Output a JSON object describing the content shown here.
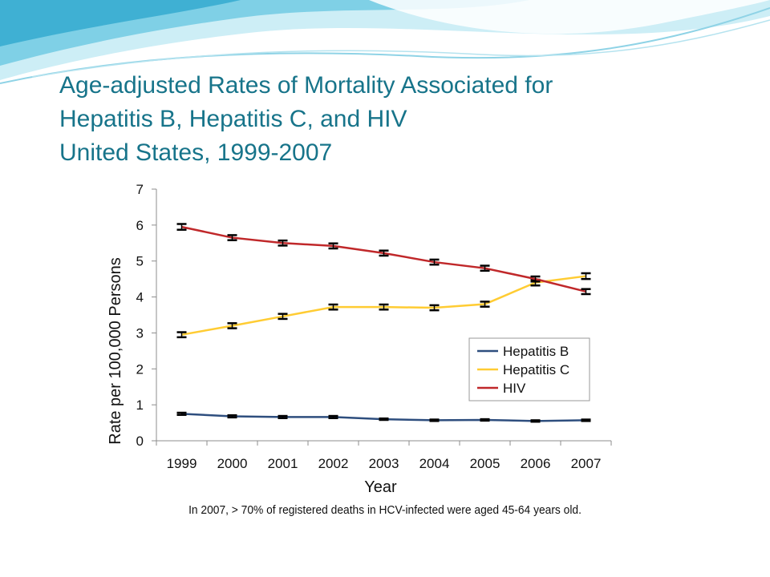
{
  "slide": {
    "title_lines": [
      "Age-adjusted Rates of Mortality Associated for",
      "Hepatitis B, Hepatitis C, and HIV",
      "United States, 1999-2007"
    ],
    "footnote": "In 2007, > 70% of registered deaths in HCV-infected were aged 45-64 years old.",
    "colors": {
      "title": "#17748a",
      "wave_dark": "#4fb8d6",
      "wave_light": "#bfe7f1"
    }
  },
  "chart_data": {
    "type": "line",
    "xlabel": "Year",
    "ylabel": "Rate per 100,000 Persons",
    "x": [
      "1999",
      "2000",
      "2001",
      "2002",
      "2003",
      "2004",
      "2005",
      "2006",
      "2007"
    ],
    "ylim": [
      0,
      7
    ],
    "yticks": [
      "0",
      "1",
      "2",
      "3",
      "4",
      "5",
      "6",
      "7"
    ],
    "grid": false,
    "legend_position": "lower-right",
    "error_bars": true,
    "series": [
      {
        "name": "Hepatitis B",
        "color": "#2e4e7e",
        "values": [
          0.75,
          0.68,
          0.66,
          0.66,
          0.6,
          0.57,
          0.58,
          0.55,
          0.57
        ],
        "err": [
          0.03,
          0.03,
          0.03,
          0.03,
          0.02,
          0.02,
          0.02,
          0.02,
          0.02
        ]
      },
      {
        "name": "Hepatitis C",
        "color": "#ffcc33",
        "values": [
          2.95,
          3.2,
          3.46,
          3.72,
          3.72,
          3.7,
          3.8,
          4.4,
          4.58
        ],
        "err": [
          0.07,
          0.07,
          0.07,
          0.07,
          0.07,
          0.07,
          0.07,
          0.08,
          0.08
        ]
      },
      {
        "name": "HIV",
        "color": "#c0282a",
        "values": [
          5.95,
          5.65,
          5.5,
          5.42,
          5.22,
          4.97,
          4.8,
          4.5,
          4.15
        ],
        "err": [
          0.08,
          0.07,
          0.07,
          0.07,
          0.07,
          0.07,
          0.07,
          0.07,
          0.07
        ]
      }
    ]
  }
}
